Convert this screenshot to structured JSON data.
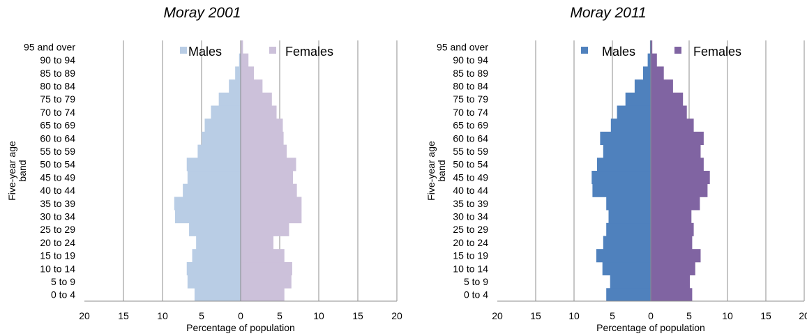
{
  "chart_data": [
    {
      "type": "bar",
      "title": "Moray 2001",
      "xlabel": "Percentage of population",
      "ylabel": "Five-year age band",
      "xlim": [
        -20,
        20
      ],
      "xticks": [
        "20",
        "15",
        "10",
        "5",
        "0",
        "5",
        "10",
        "15",
        "20"
      ],
      "categories": [
        "0 to 4",
        "5 to 9",
        "10 to 14",
        "15 to 19",
        "20 to 24",
        "25 to 29",
        "30 to 34",
        "35 to 39",
        "40 to 44",
        "45 to 49",
        "50 to 54",
        "55 to 59",
        "60 to 64",
        "65 to 69",
        "70 to 74",
        "75 to 79",
        "80 to 84",
        "85 to 89",
        "90 to 94",
        "95 and over"
      ],
      "series": [
        {
          "name": "Males",
          "color": "#b9cde5",
          "values": [
            5.9,
            6.8,
            6.9,
            6.2,
            5.7,
            6.6,
            8.4,
            8.5,
            7.4,
            6.8,
            6.9,
            5.5,
            5.0,
            4.6,
            3.8,
            2.8,
            1.5,
            0.7,
            0.2,
            0.0
          ]
        },
        {
          "name": "Females",
          "color": "#ccc1da",
          "values": [
            5.6,
            6.5,
            6.6,
            5.6,
            4.2,
            6.2,
            7.8,
            7.8,
            7.2,
            6.7,
            7.1,
            5.9,
            5.5,
            5.4,
            4.6,
            4.0,
            2.8,
            1.7,
            1.0,
            0.3
          ]
        }
      ],
      "legend_position": "top"
    },
    {
      "type": "bar",
      "title": "Moray 2011",
      "xlabel": "Percentage of population",
      "ylabel": "Five-year age band",
      "xlim": [
        -20,
        20
      ],
      "xticks": [
        "20",
        "15",
        "10",
        "5",
        "0",
        "5",
        "10",
        "15",
        "20"
      ],
      "categories": [
        "0 to 4",
        "5 to 9",
        "10 to 14",
        "15 to 19",
        "20 to 24",
        "25 to 29",
        "30 to 34",
        "35 to 39",
        "40 to 44",
        "45 to 49",
        "50 to 54",
        "55 to 59",
        "60 to 64",
        "65 to 69",
        "70 to 74",
        "75 to 79",
        "80 to 84",
        "85 to 89",
        "90 to 94",
        "95 and over"
      ],
      "series": [
        {
          "name": "Males",
          "color": "#4f81bd",
          "values": [
            5.8,
            5.3,
            6.3,
            7.1,
            6.2,
            5.8,
            5.5,
            5.8,
            7.6,
            7.7,
            7.0,
            6.2,
            6.6,
            5.2,
            4.4,
            3.3,
            2.1,
            1.0,
            0.4,
            0.1
          ]
        },
        {
          "name": "Females",
          "color": "#8064a2",
          "values": [
            5.4,
            5.1,
            5.8,
            6.5,
            5.4,
            5.6,
            5.3,
            6.4,
            7.4,
            7.7,
            6.9,
            6.5,
            6.9,
            5.6,
            4.7,
            4.2,
            2.9,
            1.7,
            0.8,
            0.2
          ]
        }
      ],
      "legend_position": "top"
    }
  ]
}
